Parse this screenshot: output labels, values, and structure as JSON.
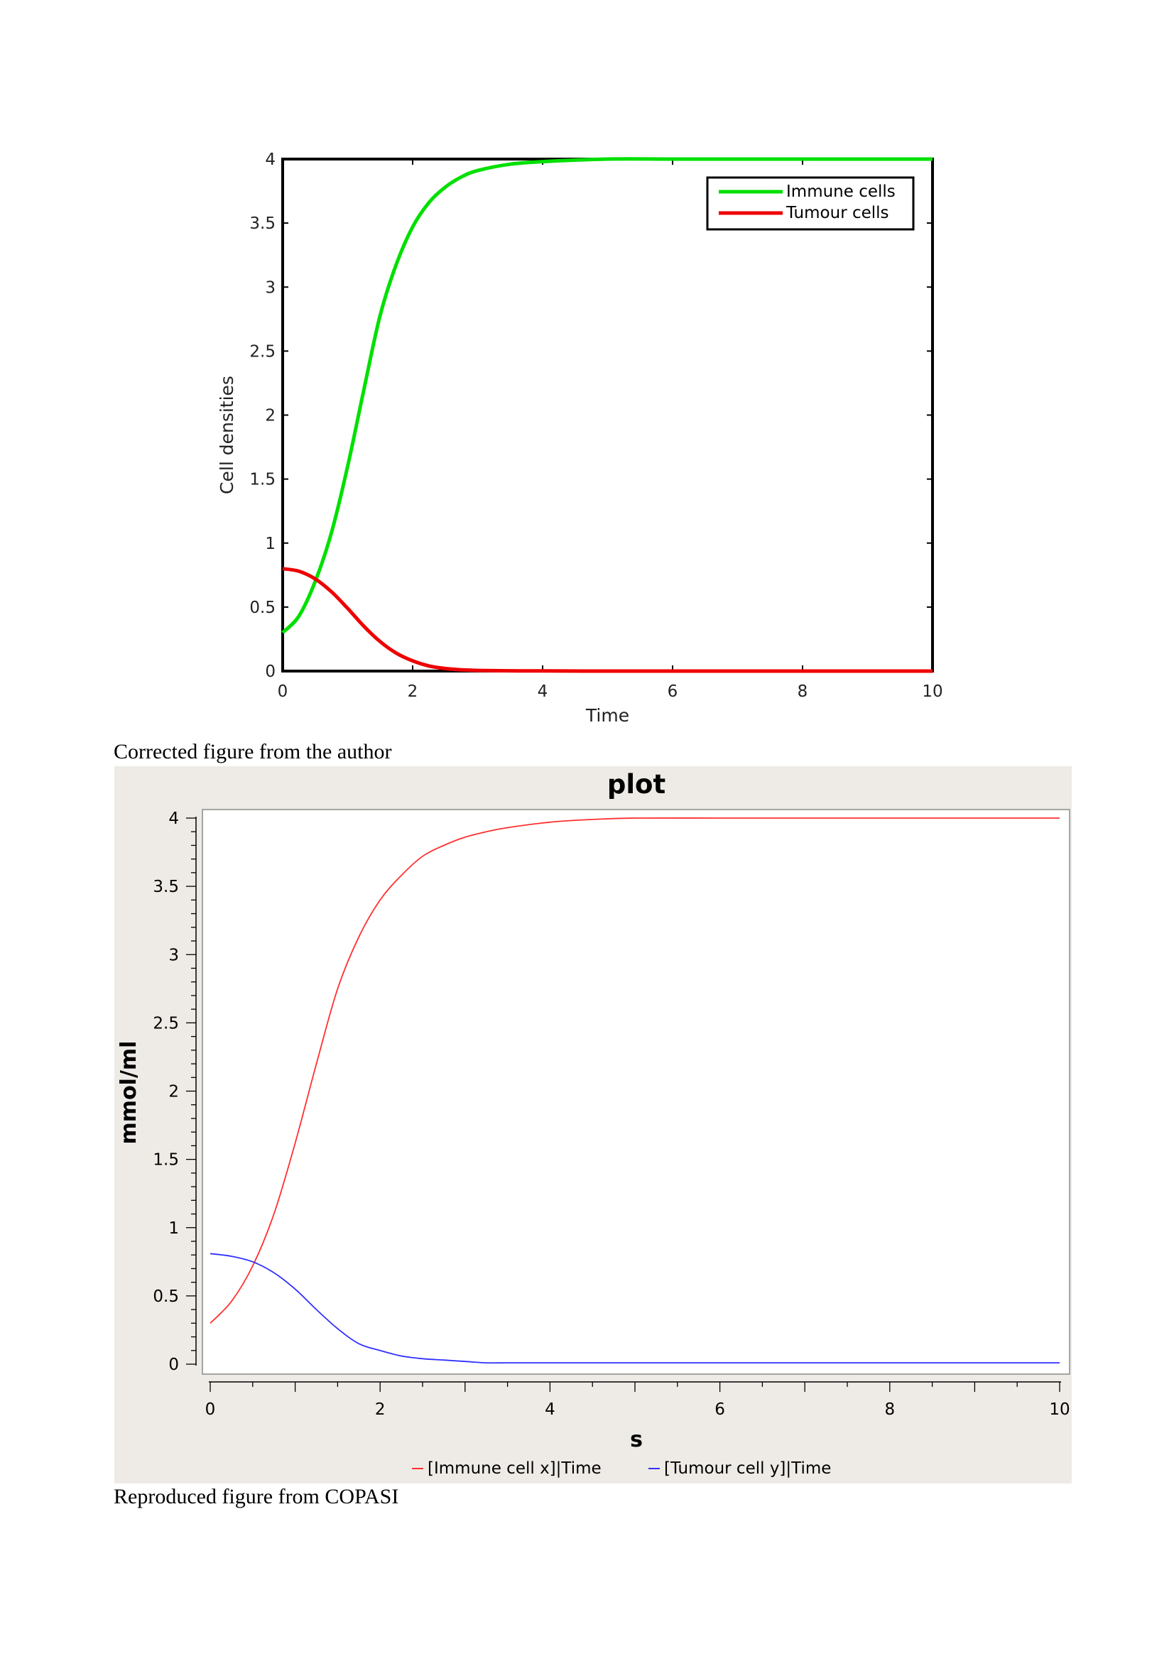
{
  "captions": {
    "first": "Corrected figure from the author",
    "second": "Reproduced figure from COPASI"
  },
  "chart_data": [
    {
      "type": "line",
      "title": "",
      "xlabel": "Time",
      "ylabel": "Cell densities",
      "xlim": [
        0,
        10
      ],
      "ylim": [
        0,
        4
      ],
      "xticks": [
        "0",
        "2",
        "4",
        "6",
        "8",
        "10"
      ],
      "yticks": [
        "0",
        "0.5",
        "1",
        "1.5",
        "2",
        "2.5",
        "3",
        "3.5",
        "4"
      ],
      "legend_position": "top-right",
      "grid": false,
      "x": [
        0,
        0.25,
        0.5,
        0.75,
        1,
        1.25,
        1.5,
        1.75,
        2,
        2.25,
        2.5,
        2.75,
        3,
        3.5,
        4,
        5,
        6,
        7,
        8,
        9,
        10
      ],
      "series": [
        {
          "name": "Immune cells",
          "color": "#00e000",
          "values": [
            0.3,
            0.43,
            0.7,
            1.08,
            1.6,
            2.2,
            2.78,
            3.18,
            3.47,
            3.66,
            3.78,
            3.86,
            3.91,
            3.96,
            3.98,
            4.0,
            4.0,
            4.0,
            4.0,
            4.0,
            4.0
          ]
        },
        {
          "name": "Tumour cells",
          "color": "#ee0000",
          "values": [
            0.8,
            0.78,
            0.72,
            0.62,
            0.49,
            0.35,
            0.23,
            0.14,
            0.08,
            0.04,
            0.02,
            0.01,
            0.005,
            0.002,
            0.001,
            0,
            0,
            0,
            0,
            0,
            0
          ]
        }
      ]
    },
    {
      "type": "line",
      "title": "plot",
      "xlabel": "s",
      "ylabel": "mmol/ml",
      "xlim": [
        0,
        10
      ],
      "ylim": [
        0,
        4
      ],
      "xticks": [
        "0",
        "2",
        "4",
        "6",
        "8",
        "10"
      ],
      "yticks": [
        "0",
        "0.5",
        "1",
        "1.5",
        "2",
        "2.5",
        "3",
        "3.5",
        "4"
      ],
      "legend_position": "bottom",
      "grid": false,
      "x": [
        0,
        0.25,
        0.5,
        0.75,
        1,
        1.25,
        1.5,
        1.75,
        2,
        2.25,
        2.5,
        2.75,
        3,
        3.25,
        3.5,
        4,
        4.5,
        5,
        6,
        7,
        8,
        9,
        10
      ],
      "series": [
        {
          "name": "[Immune cell x]|Time",
          "color": "#ff3030",
          "values": [
            0.3,
            0.46,
            0.72,
            1.1,
            1.62,
            2.2,
            2.75,
            3.13,
            3.4,
            3.58,
            3.72,
            3.8,
            3.86,
            3.9,
            3.93,
            3.97,
            3.99,
            4.0,
            4.0,
            4.0,
            4.0,
            4.0,
            4.0
          ]
        },
        {
          "name": "[Tumour cell y]|Time",
          "color": "#3030ff",
          "values": [
            0.81,
            0.79,
            0.75,
            0.67,
            0.55,
            0.4,
            0.26,
            0.15,
            0.1,
            0.06,
            0.04,
            0.03,
            0.02,
            0.01,
            0.01,
            0.01,
            0.01,
            0.01,
            0.01,
            0.01,
            0.01,
            0.01,
            0.01
          ]
        }
      ]
    }
  ]
}
